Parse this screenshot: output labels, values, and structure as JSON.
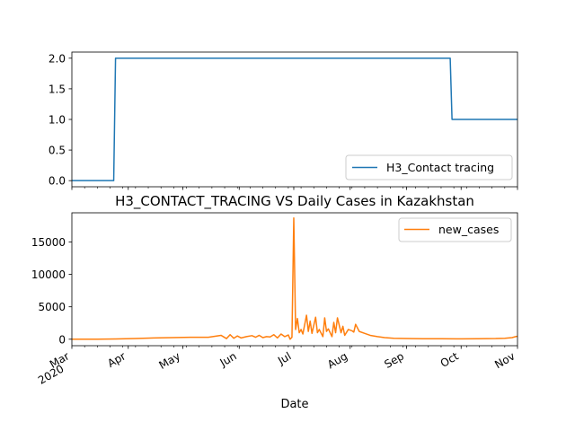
{
  "chart_data": [
    {
      "type": "line",
      "title": "",
      "xlabel": "",
      "ylabel": "",
      "ylim": [
        -0.1,
        2.1
      ],
      "yticks": [
        "0.0",
        "0.5",
        "1.0",
        "1.5",
        "2.0"
      ],
      "ytick_values": [
        0.0,
        0.5,
        1.0,
        1.5,
        2.0
      ],
      "legend": "lower right",
      "series": [
        {
          "name": "H3_Contact tracing",
          "color": "#1f77b4",
          "x": [
            "2020-03-01",
            "2020-03-24",
            "2020-03-25",
            "2020-09-25",
            "2020-09-26",
            "2020-11-01"
          ],
          "values": [
            0,
            0,
            2,
            2,
            1,
            1
          ]
        }
      ]
    },
    {
      "type": "line",
      "title": "H3_CONTACT_TRACING VS Daily Cases in Kazakhstan",
      "xlabel": "Date",
      "ylabel": "",
      "ylim": [
        -1000,
        19500
      ],
      "yticks": [
        "0",
        "5000",
        "10000",
        "15000"
      ],
      "ytick_values": [
        0,
        5000,
        10000,
        15000
      ],
      "legend": "upper right",
      "xtick_labels": [
        {
          "label": "Mar",
          "sub": "2020",
          "date": "2020-03-01"
        },
        {
          "label": "Apr",
          "sub": "",
          "date": "2020-04-01"
        },
        {
          "label": "May",
          "sub": "",
          "date": "2020-05-01"
        },
        {
          "label": "Jun",
          "sub": "",
          "date": "2020-06-01"
        },
        {
          "label": "Jul",
          "sub": "",
          "date": "2020-07-01"
        },
        {
          "label": "Aug",
          "sub": "",
          "date": "2020-08-01"
        },
        {
          "label": "Sep",
          "sub": "",
          "date": "2020-09-01"
        },
        {
          "label": "Oct",
          "sub": "",
          "date": "2020-10-01"
        },
        {
          "label": "Nov",
          "sub": "",
          "date": "2020-11-01"
        }
      ],
      "series": [
        {
          "name": "new_cases",
          "color": "#ff7f0e",
          "x": [
            "2020-03-01",
            "2020-03-15",
            "2020-03-25",
            "2020-04-05",
            "2020-04-15",
            "2020-04-25",
            "2020-05-05",
            "2020-05-15",
            "2020-05-22",
            "2020-05-25",
            "2020-05-27",
            "2020-05-29",
            "2020-05-31",
            "2020-06-02",
            "2020-06-05",
            "2020-06-08",
            "2020-06-10",
            "2020-06-12",
            "2020-06-14",
            "2020-06-16",
            "2020-06-18",
            "2020-06-20",
            "2020-06-22",
            "2020-06-24",
            "2020-06-26",
            "2020-06-28",
            "2020-06-29",
            "2020-06-30",
            "2020-07-01",
            "2020-07-02",
            "2020-07-03",
            "2020-07-04",
            "2020-07-05",
            "2020-07-06",
            "2020-07-08",
            "2020-07-09",
            "2020-07-10",
            "2020-07-11",
            "2020-07-13",
            "2020-07-14",
            "2020-07-15",
            "2020-07-17",
            "2020-07-18",
            "2020-07-19",
            "2020-07-20",
            "2020-07-22",
            "2020-07-23",
            "2020-07-24",
            "2020-07-25",
            "2020-07-27",
            "2020-07-28",
            "2020-07-29",
            "2020-07-31",
            "2020-08-02",
            "2020-08-03",
            "2020-08-04",
            "2020-08-06",
            "2020-08-09",
            "2020-08-12",
            "2020-08-16",
            "2020-08-20",
            "2020-08-25",
            "2020-09-01",
            "2020-09-10",
            "2020-09-20",
            "2020-10-01",
            "2020-10-10",
            "2020-10-20",
            "2020-10-25",
            "2020-10-29",
            "2020-10-31",
            "2020-11-01"
          ],
          "values": [
            0,
            10,
            40,
            100,
            200,
            250,
            300,
            300,
            600,
            100,
            700,
            150,
            500,
            200,
            400,
            550,
            300,
            600,
            250,
            400,
            350,
            700,
            200,
            800,
            400,
            650,
            0,
            300,
            18700,
            1500,
            3200,
            1000,
            1500,
            800,
            3700,
            1200,
            2800,
            900,
            3400,
            1000,
            1500,
            400,
            3300,
            1200,
            1600,
            400,
            2600,
            1000,
            3300,
            1000,
            2000,
            600,
            1500,
            1300,
            1100,
            2300,
            1200,
            900,
            600,
            400,
            250,
            150,
            100,
            80,
            70,
            60,
            80,
            100,
            150,
            250,
            400,
            450
          ]
        }
      ]
    }
  ]
}
